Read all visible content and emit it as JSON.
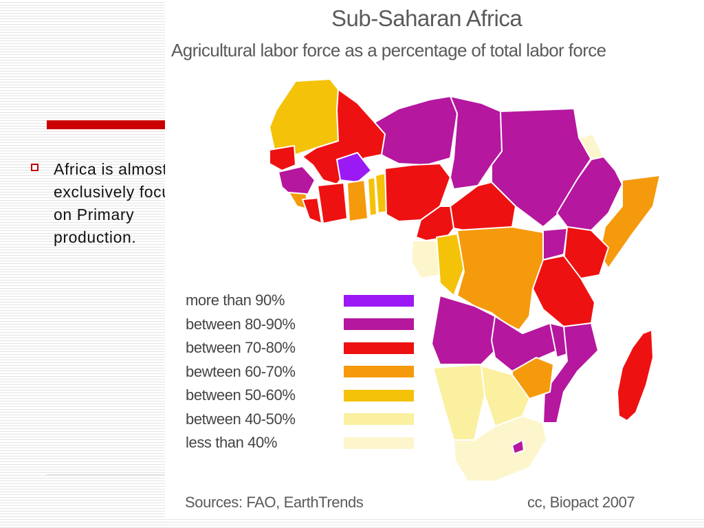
{
  "slide": {
    "bullet_text": "Africa is almost exclusively focused on Primary production."
  },
  "map": {
    "title": "Sub-Saharan Africa",
    "subtitle": "Agricultural labor force as a percentage of total labor force",
    "sources": "Sources: FAO, EarthTrends",
    "credit": "cc, Biopact 2007",
    "legend": [
      {
        "label": "more than 90%",
        "color": "#9b19f5"
      },
      {
        "label": "between 80-90%",
        "color": "#b5179e"
      },
      {
        "label": "between 70-80%",
        "color": "#ee1111"
      },
      {
        "label": "bewteen 60-70%",
        "color": "#f59a0c"
      },
      {
        "label": "between 50-60%",
        "color": "#f5c20a"
      },
      {
        "label": "between 40-50%",
        "color": "#faf0a0"
      },
      {
        "label": "less than 40%",
        "color": "#fdf6cd"
      }
    ]
  },
  "colors": {
    "accent_red": "#cc0000",
    "outline": "#ffffff"
  }
}
